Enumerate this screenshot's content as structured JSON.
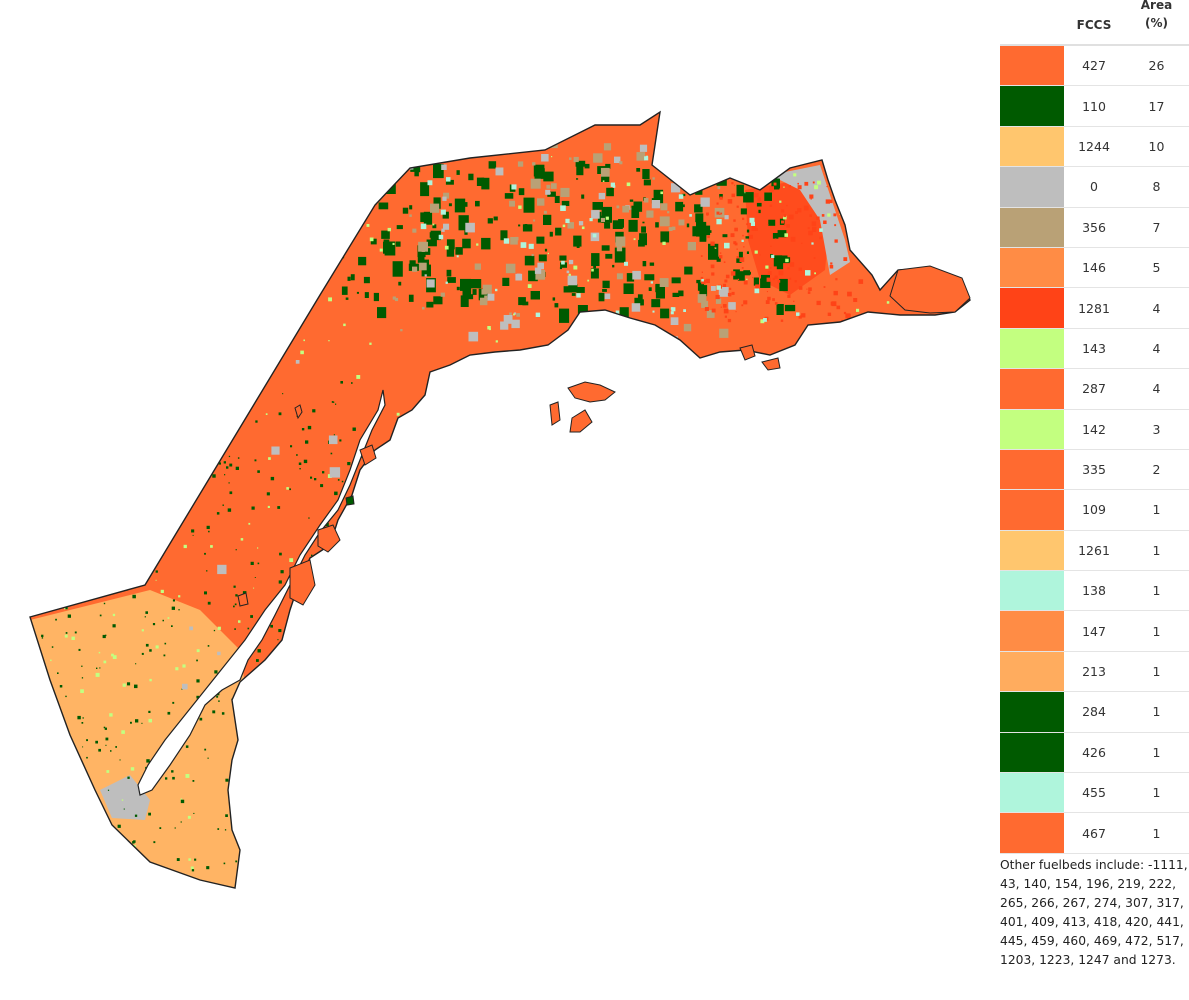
{
  "legend": {
    "header_fccs": "FCCS",
    "header_area_line1": "Area",
    "header_area_line2": "(%)",
    "rows": [
      {
        "fccs": "427",
        "area": "26",
        "color": "#ff6a30"
      },
      {
        "fccs": "110",
        "area": "17",
        "color": "#005a00"
      },
      {
        "fccs": "1244",
        "area": "10",
        "color": "#ffc66e"
      },
      {
        "fccs": "0",
        "area": "8",
        "color": "#bebebe"
      },
      {
        "fccs": "356",
        "area": "7",
        "color": "#b9a176"
      },
      {
        "fccs": "146",
        "area": "5",
        "color": "#ff8c45"
      },
      {
        "fccs": "1281",
        "area": "4",
        "color": "#ff4317"
      },
      {
        "fccs": "143",
        "area": "4",
        "color": "#c3ff80"
      },
      {
        "fccs": "287",
        "area": "4",
        "color": "#ff6a30"
      },
      {
        "fccs": "142",
        "area": "3",
        "color": "#c3ff80"
      },
      {
        "fccs": "335",
        "area": "2",
        "color": "#ff6a30"
      },
      {
        "fccs": "109",
        "area": "1",
        "color": "#ff6a30"
      },
      {
        "fccs": "1261",
        "area": "1",
        "color": "#ffc66e"
      },
      {
        "fccs": "138",
        "area": "1",
        "color": "#aff5dc"
      },
      {
        "fccs": "147",
        "area": "1",
        "color": "#ff8c45"
      },
      {
        "fccs": "213",
        "area": "1",
        "color": "#ffac5e"
      },
      {
        "fccs": "284",
        "area": "1",
        "color": "#005a00"
      },
      {
        "fccs": "426",
        "area": "1",
        "color": "#005a00"
      },
      {
        "fccs": "455",
        "area": "1",
        "color": "#aff5dc"
      },
      {
        "fccs": "467",
        "area": "1",
        "color": "#ff6a30"
      }
    ],
    "note": "Other fuelbeds include: -1111, 43, 140, 154, 196, 219, 222, 265, 266, 267, 274, 307, 317, 401, 409, 413, 418, 420, 441, 445, 459, 460, 469, 472, 517, 1203, 1223, 1247 and 1273."
  },
  "map": {
    "colors": {
      "dominant": "#ff6a30",
      "forest": "#005a00",
      "light_orange": "#ffc66e",
      "gray": "#bebebe",
      "tan": "#b9a176",
      "red": "#ff4317",
      "light_green": "#c3ff80",
      "aqua": "#aff5dc",
      "outline": "#222222",
      "water": "#ffffff"
    }
  }
}
